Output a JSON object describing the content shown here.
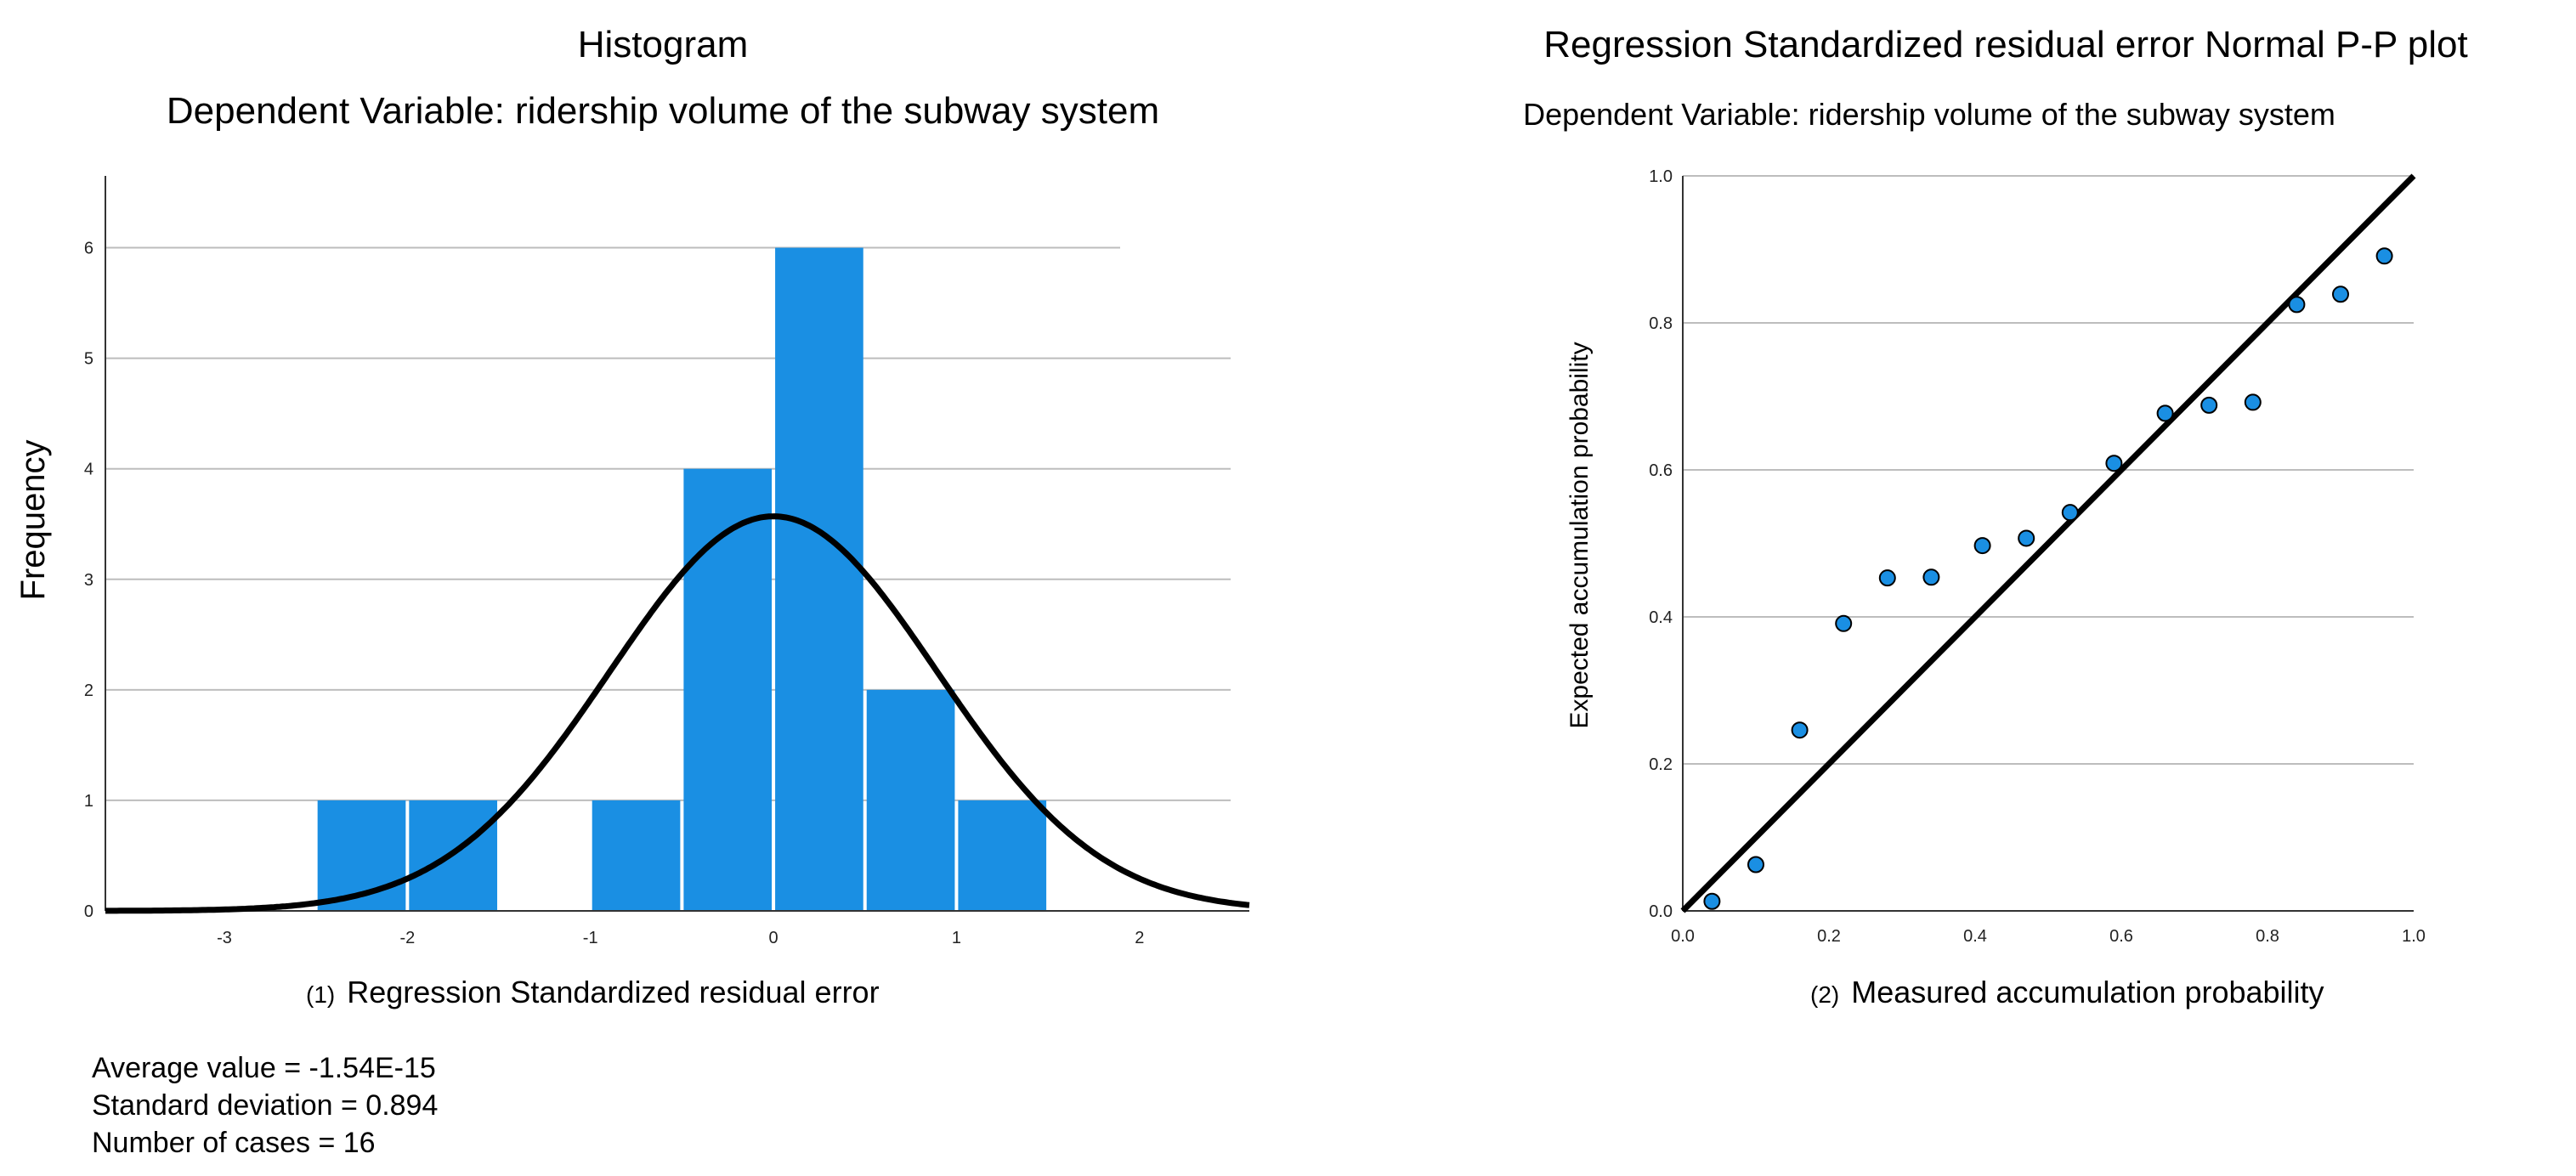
{
  "chart_data": [
    {
      "type": "histogram",
      "title": "Histogram",
      "subtitle": "Dependent Variable: ridership volume of the subway system",
      "xlabel_number": "(1)",
      "xlabel": "Regression  Standardized residual error",
      "ylabel": "Frequency",
      "xlim": [
        -3.65,
        2.6
      ],
      "ylim": [
        0,
        6.65
      ],
      "x_ticks": [
        -3,
        -2,
        -1,
        0,
        1,
        2
      ],
      "y_ticks": [
        0,
        1,
        2,
        3,
        4,
        5,
        6
      ],
      "bins": [
        {
          "start": -2.5,
          "end": -2.0,
          "count": 1
        },
        {
          "start": -2.0,
          "end": -1.5,
          "count": 1
        },
        {
          "start": -1.5,
          "end": -1.0,
          "count": 0
        },
        {
          "start": -1.0,
          "end": -0.5,
          "count": 1
        },
        {
          "start": -0.5,
          "end": 0.0,
          "count": 4
        },
        {
          "start": 0.0,
          "end": 0.5,
          "count": 6
        },
        {
          "start": 0.5,
          "end": 1.0,
          "count": 2
        },
        {
          "start": 1.0,
          "end": 1.5,
          "count": 1
        }
      ],
      "normal_curve": {
        "mean": 0.0,
        "sd": 0.894,
        "n": 16,
        "bin_width": 0.5
      },
      "stats": {
        "mean_label": "Average value = -1.54E-15",
        "sd_label": "Standard deviation = 0.894",
        "n_label": "Number of cases = 16"
      },
      "bar_color": "#1a8fe3"
    },
    {
      "type": "scatter",
      "title": "Regression Standardized residual error Normal P-P plot",
      "subtitle": "Dependent Variable: ridership volume of the subway system",
      "xlabel_number": "(2)",
      "xlabel": "Measured accumulation probability",
      "ylabel": "Expected accumulation probability",
      "xlim": [
        0.0,
        1.0
      ],
      "ylim": [
        0.0,
        1.0
      ],
      "x_ticks": [
        "0.0",
        "0.2",
        "0.4",
        "0.6",
        "0.8",
        "1.0"
      ],
      "y_ticks": [
        "0.0",
        "0.2",
        "0.4",
        "0.6",
        "0.8",
        "1.0"
      ],
      "reference_line": [
        [
          0,
          0
        ],
        [
          1,
          1
        ]
      ],
      "points": [
        [
          0.04,
          0.013
        ],
        [
          0.1,
          0.063
        ],
        [
          0.16,
          0.246
        ],
        [
          0.22,
          0.391
        ],
        [
          0.28,
          0.453
        ],
        [
          0.34,
          0.454
        ],
        [
          0.41,
          0.497
        ],
        [
          0.47,
          0.507
        ],
        [
          0.53,
          0.542
        ],
        [
          0.59,
          0.609
        ],
        [
          0.66,
          0.677
        ],
        [
          0.72,
          0.688
        ],
        [
          0.78,
          0.692
        ],
        [
          0.84,
          0.825
        ],
        [
          0.9,
          0.839
        ],
        [
          0.96,
          0.891
        ]
      ],
      "point_color": "#1a8fe3"
    }
  ]
}
